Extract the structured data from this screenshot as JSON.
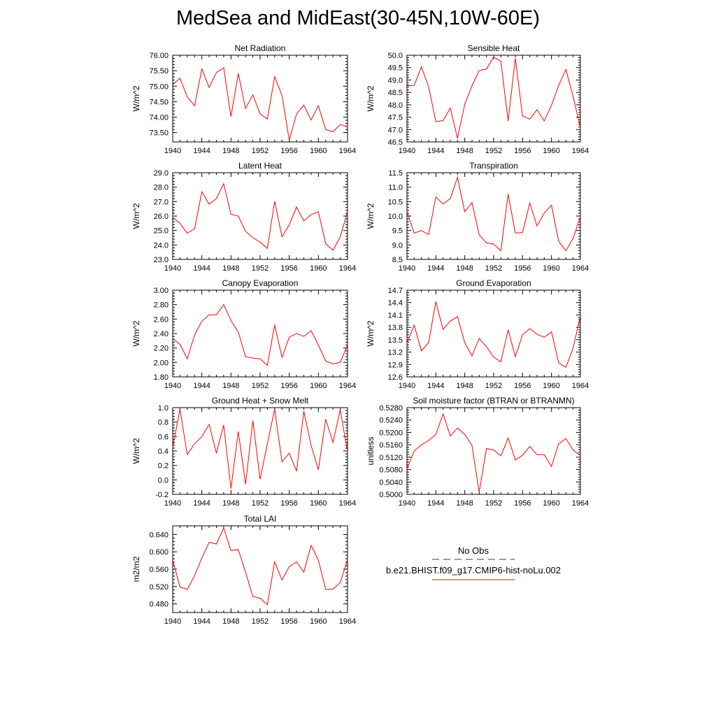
{
  "title": "MedSea and MidEast(30-45N,10W-60E)",
  "series_color": "#ff0000",
  "legend": {
    "obs_label": "No Obs",
    "obs_color": "#333399",
    "model_label": "b.e21.BHIST.f09_g17.CMIP6-hist-noLu.002",
    "model_color": "#ff0000"
  },
  "chart_data": [
    {
      "type": "line",
      "title": "Net Radiation",
      "ylabel": "W/m^2",
      "xlim": [
        1940,
        1964
      ],
      "ylim": [
        73.2,
        76.0
      ],
      "yticks": [
        "76.00",
        "75.50",
        "75.00",
        "74.50",
        "74.00",
        "73.50"
      ],
      "ytick_values": [
        76.0,
        75.5,
        75.0,
        74.5,
        74.0,
        73.5
      ],
      "xticks": [
        "1940",
        "1944",
        "1948",
        "1952",
        "1956",
        "1960",
        "1964"
      ],
      "x": [
        1940,
        1941,
        1942,
        1943,
        1944,
        1945,
        1946,
        1947,
        1948,
        1949,
        1950,
        1951,
        1952,
        1953,
        1954,
        1955,
        1956,
        1957,
        1958,
        1959,
        1960,
        1961,
        1962,
        1963,
        1964
      ],
      "values": [
        75.05,
        75.26,
        74.65,
        74.37,
        75.56,
        74.96,
        75.44,
        75.6,
        74.02,
        75.41,
        74.28,
        74.72,
        74.1,
        73.94,
        75.31,
        74.7,
        73.26,
        74.1,
        74.39,
        73.91,
        74.37,
        73.6,
        73.53,
        73.76,
        73.7
      ]
    },
    {
      "type": "line",
      "title": "Sensible Heat",
      "ylabel": "W/m^2",
      "xlim": [
        1940,
        1964
      ],
      "ylim": [
        46.5,
        50.0
      ],
      "yticks": [
        "50.0",
        "49.5",
        "49.0",
        "48.5",
        "48.0",
        "47.5",
        "47.0",
        "46.5"
      ],
      "ytick_values": [
        50.0,
        49.5,
        49.0,
        48.5,
        48.0,
        47.5,
        47.0,
        46.5
      ],
      "xticks": [
        "1940",
        "1944",
        "1948",
        "1952",
        "1956",
        "1960",
        "1964"
      ],
      "x": [
        1940,
        1941,
        1942,
        1943,
        1944,
        1945,
        1946,
        1947,
        1948,
        1949,
        1950,
        1951,
        1952,
        1953,
        1954,
        1955,
        1956,
        1957,
        1958,
        1959,
        1960,
        1961,
        1962,
        1963,
        1964
      ],
      "values": [
        48.76,
        48.78,
        49.53,
        48.73,
        47.32,
        47.36,
        47.87,
        46.65,
        48.02,
        48.77,
        49.38,
        49.45,
        49.92,
        49.76,
        47.35,
        49.88,
        47.55,
        47.42,
        47.8,
        47.35,
        47.98,
        48.78,
        49.43,
        48.33,
        47.08
      ]
    },
    {
      "type": "line",
      "title": "Latent Heat",
      "ylabel": "W/m^2",
      "xlim": [
        1940,
        1964
      ],
      "ylim": [
        23.0,
        29.0
      ],
      "yticks": [
        "29.0",
        "28.0",
        "27.0",
        "26.0",
        "25.0",
        "24.0",
        "23.0"
      ],
      "ytick_values": [
        29.0,
        28.0,
        27.0,
        26.0,
        25.0,
        24.0,
        23.0
      ],
      "xticks": [
        "1940",
        "1944",
        "1948",
        "1952",
        "1956",
        "1960",
        "1964"
      ],
      "x": [
        1940,
        1941,
        1942,
        1943,
        1944,
        1945,
        1946,
        1947,
        1948,
        1949,
        1950,
        1951,
        1952,
        1953,
        1954,
        1955,
        1956,
        1957,
        1958,
        1959,
        1960,
        1961,
        1962,
        1963,
        1964
      ],
      "values": [
        25.9,
        25.49,
        24.81,
        25.13,
        27.68,
        26.82,
        27.21,
        28.24,
        26.12,
        26.0,
        24.95,
        24.5,
        24.2,
        23.76,
        27.02,
        24.56,
        25.4,
        26.63,
        25.66,
        26.1,
        26.3,
        24.08,
        23.64,
        24.56,
        26.3
      ]
    },
    {
      "type": "line",
      "title": "Transpiration",
      "ylabel": "W/m^2",
      "xlim": [
        1940,
        1964
      ],
      "ylim": [
        8.5,
        11.5
      ],
      "yticks": [
        "11.5",
        "11.0",
        "10.5",
        "10.0",
        "9.5",
        "9.0",
        "8.5"
      ],
      "ytick_values": [
        11.5,
        11.0,
        10.5,
        10.0,
        9.5,
        9.0,
        8.5
      ],
      "xticks": [
        "1940",
        "1944",
        "1948",
        "1952",
        "1956",
        "1960",
        "1964"
      ],
      "x": [
        1940,
        1941,
        1942,
        1943,
        1944,
        1945,
        1946,
        1947,
        1948,
        1949,
        1950,
        1951,
        1952,
        1953,
        1954,
        1955,
        1956,
        1957,
        1958,
        1959,
        1960,
        1961,
        1962,
        1963,
        1964
      ],
      "values": [
        10.15,
        9.41,
        9.5,
        9.36,
        10.66,
        10.42,
        10.6,
        11.34,
        10.15,
        10.47,
        9.35,
        9.07,
        9.03,
        8.8,
        10.76,
        9.41,
        9.43,
        10.45,
        9.66,
        10.1,
        10.38,
        9.13,
        8.8,
        9.23,
        9.98
      ]
    },
    {
      "type": "line",
      "title": "Canopy Evaporation",
      "ylabel": "W/m^2",
      "xlim": [
        1940,
        1964
      ],
      "ylim": [
        1.8,
        3.0
      ],
      "yticks": [
        "3.00",
        "2.80",
        "2.60",
        "2.40",
        "2.20",
        "2.00",
        "1.80"
      ],
      "ytick_values": [
        3.0,
        2.8,
        2.6,
        2.4,
        2.2,
        2.0,
        1.8
      ],
      "xticks": [
        "1940",
        "1944",
        "1948",
        "1952",
        "1956",
        "1960",
        "1964"
      ],
      "x": [
        1940,
        1941,
        1942,
        1943,
        1944,
        1945,
        1946,
        1947,
        1948,
        1949,
        1950,
        1951,
        1952,
        1953,
        1954,
        1955,
        1956,
        1957,
        1958,
        1959,
        1960,
        1961,
        1962,
        1963,
        1964
      ],
      "values": [
        2.33,
        2.25,
        2.05,
        2.38,
        2.57,
        2.66,
        2.66,
        2.8,
        2.58,
        2.42,
        2.08,
        2.06,
        2.05,
        1.96,
        2.52,
        2.07,
        2.35,
        2.4,
        2.36,
        2.44,
        2.24,
        2.02,
        1.98,
        2.0,
        2.24
      ]
    },
    {
      "type": "line",
      "title": "Ground Evaporation",
      "ylabel": "W/m^2",
      "xlim": [
        1940,
        1964
      ],
      "ylim": [
        12.6,
        14.7
      ],
      "yticks": [
        "14.7",
        "14.4",
        "14.1",
        "13.8",
        "13.5",
        "13.2",
        "12.9",
        "12.6"
      ],
      "ytick_values": [
        14.7,
        14.4,
        14.1,
        13.8,
        13.5,
        13.2,
        12.9,
        12.6
      ],
      "xticks": [
        "1940",
        "1944",
        "1948",
        "1952",
        "1956",
        "1960",
        "1964"
      ],
      "x": [
        1940,
        1941,
        1942,
        1943,
        1944,
        1945,
        1946,
        1947,
        1948,
        1949,
        1950,
        1951,
        1952,
        1953,
        1954,
        1955,
        1956,
        1957,
        1958,
        1959,
        1960,
        1961,
        1962,
        1963,
        1964
      ],
      "values": [
        13.42,
        13.85,
        13.23,
        13.43,
        14.42,
        13.75,
        13.95,
        14.06,
        13.43,
        13.11,
        13.53,
        13.33,
        13.08,
        12.96,
        13.74,
        13.09,
        13.62,
        13.77,
        13.63,
        13.56,
        13.69,
        12.94,
        12.83,
        13.3,
        14.08
      ]
    },
    {
      "type": "line",
      "title": "Ground Heat + Snow Melt",
      "ylabel": "W/m^2",
      "xlim": [
        1940,
        1964
      ],
      "ylim": [
        -0.2,
        1.0
      ],
      "yticks": [
        "1.0",
        "0.8",
        "0.6",
        "0.4",
        "0.2",
        "0.0",
        "-0.2"
      ],
      "ytick_values": [
        1.0,
        0.8,
        0.6,
        0.4,
        0.2,
        0.0,
        -0.2
      ],
      "xticks": [
        "1940",
        "1944",
        "1948",
        "1952",
        "1956",
        "1960",
        "1964"
      ],
      "x": [
        1940,
        1941,
        1942,
        1943,
        1944,
        1945,
        1946,
        1947,
        1948,
        1949,
        1950,
        1951,
        1952,
        1953,
        1954,
        1955,
        1956,
        1957,
        1958,
        1959,
        1960,
        1961,
        1962,
        1963,
        1964
      ],
      "values": [
        0.45,
        0.98,
        0.35,
        0.5,
        0.6,
        0.77,
        0.37,
        0.76,
        -0.12,
        0.67,
        -0.06,
        0.82,
        0.01,
        0.5,
        0.98,
        0.25,
        0.37,
        0.12,
        0.95,
        0.48,
        0.14,
        0.84,
        0.52,
        0.97,
        0.39
      ]
    },
    {
      "type": "line",
      "title": "Soil moisture factor (BTRAN or BTRANMN)",
      "ylabel": "unitless",
      "xlim": [
        1940,
        1964
      ],
      "ylim": [
        0.5,
        0.528
      ],
      "yticks": [
        "0.5280",
        "0.5240",
        "0.5200",
        "0.5160",
        "0.5120",
        "0.5080",
        "0.5040",
        "0.5000"
      ],
      "ytick_values": [
        0.528,
        0.524,
        0.52,
        0.516,
        0.512,
        0.508,
        0.504,
        0.5
      ],
      "xticks": [
        "1940",
        "1944",
        "1948",
        "1952",
        "1956",
        "1960",
        "1964"
      ],
      "x": [
        1940,
        1941,
        1942,
        1943,
        1944,
        1945,
        1946,
        1947,
        1948,
        1949,
        1950,
        1951,
        1952,
        1953,
        1954,
        1955,
        1956,
        1957,
        1958,
        1959,
        1960,
        1961,
        1962,
        1963,
        1964
      ],
      "values": [
        0.5082,
        0.514,
        0.516,
        0.5174,
        0.5193,
        0.526,
        0.5188,
        0.5214,
        0.5194,
        0.5158,
        0.5007,
        0.5148,
        0.5144,
        0.5124,
        0.5182,
        0.5111,
        0.5126,
        0.5155,
        0.5128,
        0.5128,
        0.509,
        0.5163,
        0.518,
        0.5143,
        0.5126
      ]
    },
    {
      "type": "line",
      "title": "Total LAI",
      "ylabel": "m2/m2",
      "xlim": [
        1940,
        1964
      ],
      "ylim": [
        0.46,
        0.66
      ],
      "yticks": [
        "0.640",
        "0.600",
        "0.560",
        "0.520",
        "0.480"
      ],
      "ytick_values": [
        0.64,
        0.6,
        0.56,
        0.52,
        0.48
      ],
      "xticks": [
        "1940",
        "1944",
        "1948",
        "1952",
        "1956",
        "1960",
        "1964"
      ],
      "x": [
        1940,
        1941,
        1942,
        1943,
        1944,
        1945,
        1946,
        1947,
        1948,
        1949,
        1950,
        1951,
        1952,
        1953,
        1954,
        1955,
        1956,
        1957,
        1958,
        1959,
        1960,
        1961,
        1962,
        1963,
        1964
      ],
      "values": [
        0.581,
        0.519,
        0.513,
        0.545,
        0.586,
        0.622,
        0.618,
        0.655,
        0.603,
        0.605,
        0.553,
        0.497,
        0.493,
        0.478,
        0.577,
        0.535,
        0.566,
        0.577,
        0.553,
        0.615,
        0.581,
        0.513,
        0.514,
        0.529,
        0.582
      ]
    }
  ]
}
